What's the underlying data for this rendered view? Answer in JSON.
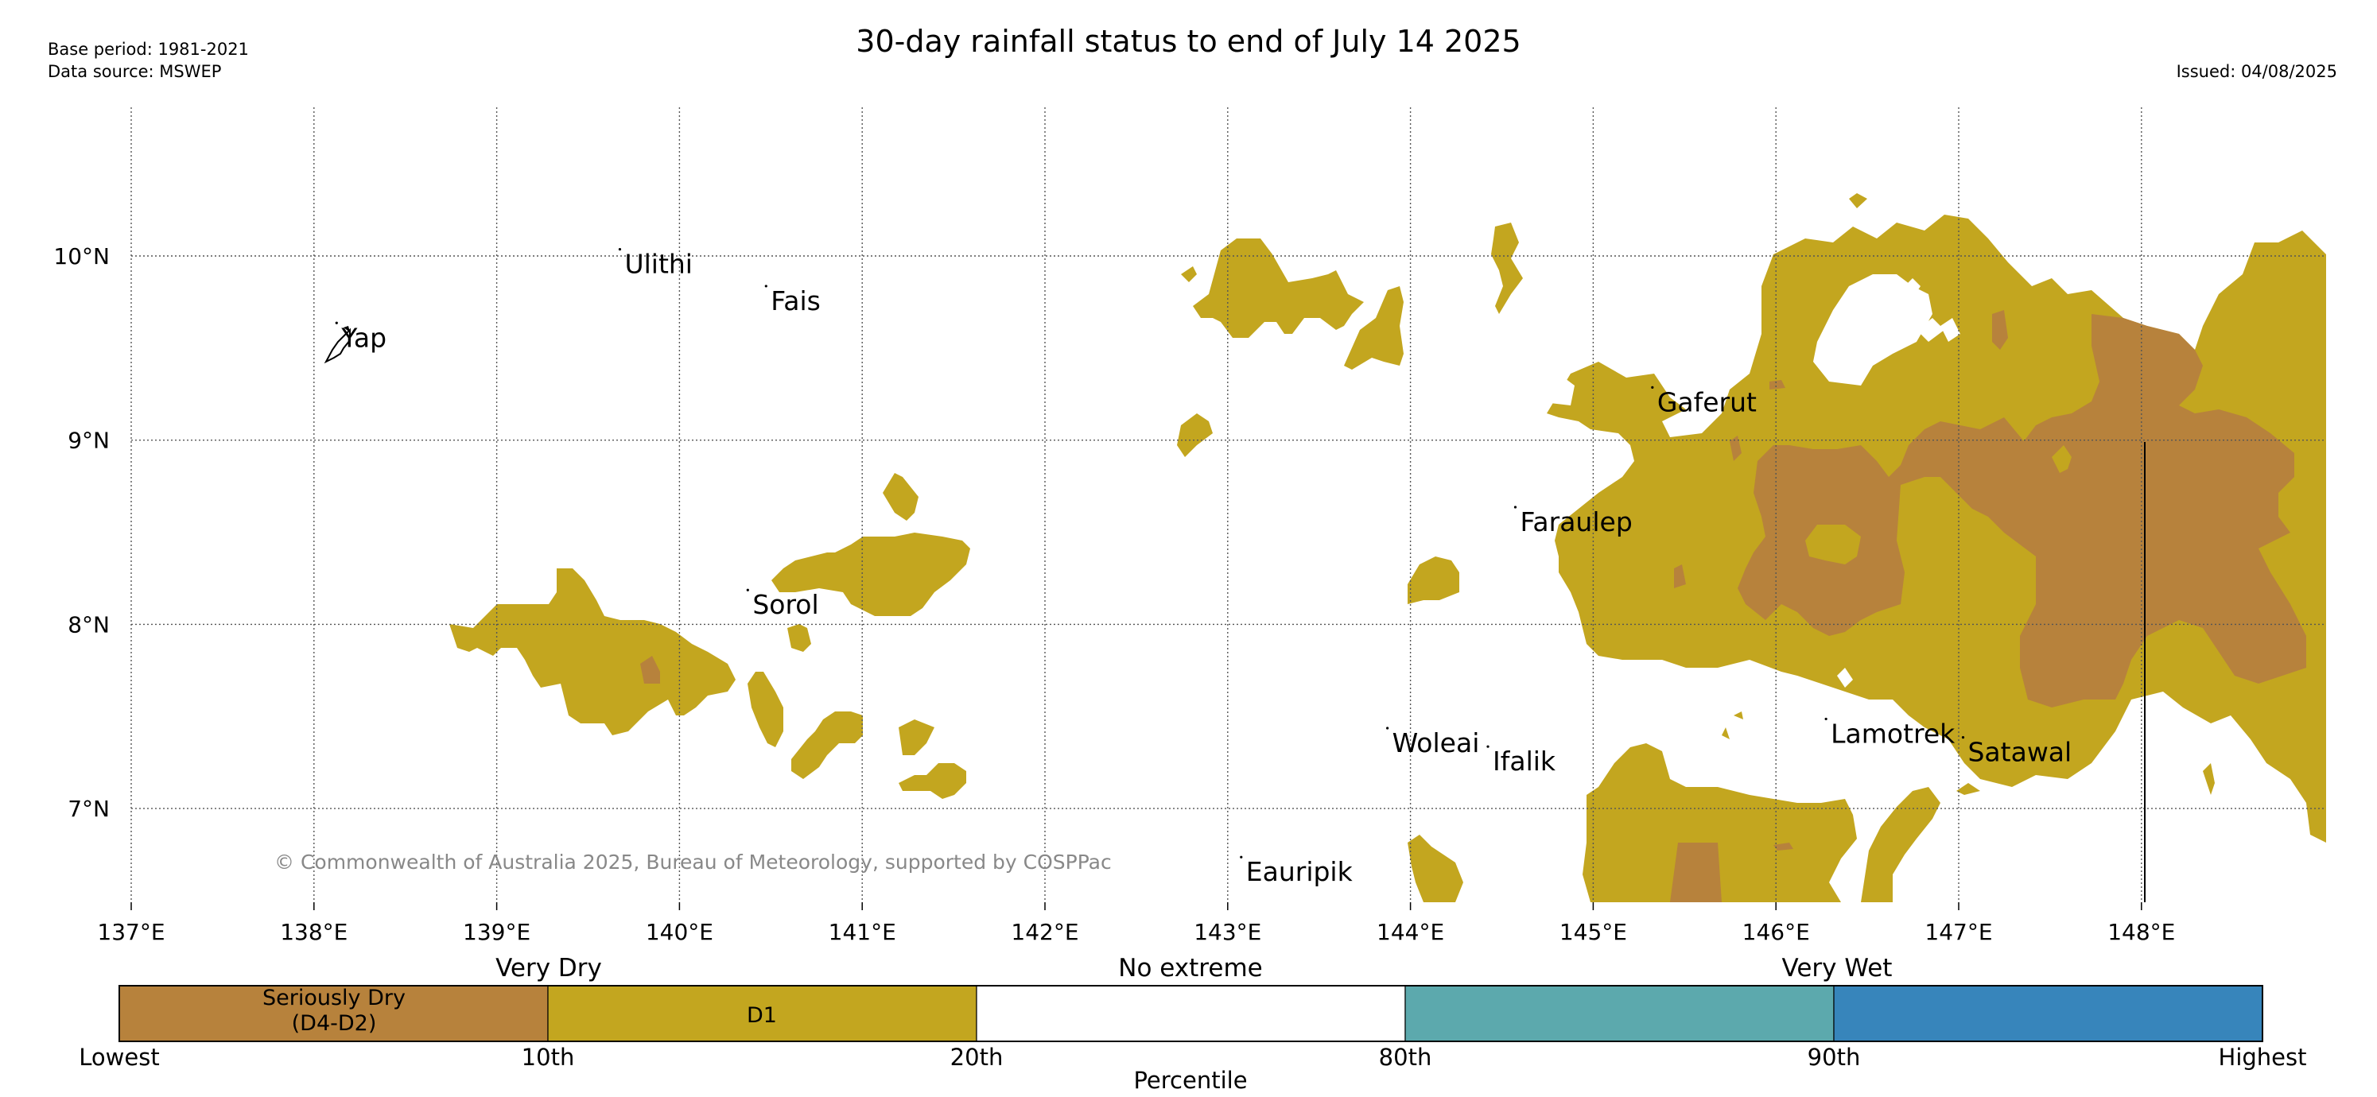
{
  "header": {
    "title": "30-day rainfall status to end of July 14 2025",
    "base_period": "Base period: 1981-2021",
    "data_source": "Data source: MSWEP",
    "issued": "Issued: 04/08/2025"
  },
  "map": {
    "lon_ticks": [
      "137°E",
      "138°E",
      "139°E",
      "140°E",
      "141°E",
      "142°E",
      "143°E",
      "144°E",
      "145°E",
      "146°E",
      "147°E",
      "148°E"
    ],
    "lat_ticks": [
      "10°N",
      "9°N",
      "8°N",
      "7°N"
    ],
    "places": [
      {
        "name": "Ulithi",
        "lon": 139.7,
        "lat": 9.95
      },
      {
        "name": "Fais",
        "lon": 140.5,
        "lat": 9.75
      },
      {
        "name": "Yap",
        "lon": 138.15,
        "lat": 9.55
      },
      {
        "name": "Gaferut",
        "lon": 145.35,
        "lat": 9.2
      },
      {
        "name": "Faraulep",
        "lon": 144.6,
        "lat": 8.55
      },
      {
        "name": "Sorol",
        "lon": 140.4,
        "lat": 8.1
      },
      {
        "name": "Woleai",
        "lon": 143.9,
        "lat": 7.35
      },
      {
        "name": "Ifalik",
        "lon": 144.45,
        "lat": 7.25
      },
      {
        "name": "Lamotrek",
        "lon": 146.3,
        "lat": 7.4
      },
      {
        "name": "Satawal",
        "lon": 147.05,
        "lat": 7.3
      },
      {
        "name": "Eauripik",
        "lon": 143.1,
        "lat": 6.65
      }
    ],
    "copyright": "© Commonwealth of Australia 2025, Bureau of Meteorology, supported by COSPPac",
    "colors": {
      "dry1": "#c3a61f",
      "dry2": "#b7823c",
      "wet1": "#5ca9ad",
      "wet2": "#3785bb"
    }
  },
  "colorbar": {
    "headers": {
      "very_dry": "Very Dry",
      "no_extreme": "No extreme",
      "very_wet": "Very Wet"
    },
    "segments": [
      {
        "label": "Seriously Dry\n(D4-D2)",
        "color": "#b7823c"
      },
      {
        "label": "D1",
        "color": "#c3a61f"
      },
      {
        "label": "",
        "color": "#ffffff"
      },
      {
        "label": "",
        "color": "#5ca9ad"
      },
      {
        "label": "",
        "color": "#3785bb"
      }
    ],
    "seg1_line1": "Seriously Dry",
    "seg1_line2": "(D4-D2)",
    "seg2": "D1",
    "ticks": [
      "Lowest",
      "10th",
      "20th",
      "80th",
      "90th",
      "Highest"
    ],
    "xlabel": "Percentile"
  }
}
